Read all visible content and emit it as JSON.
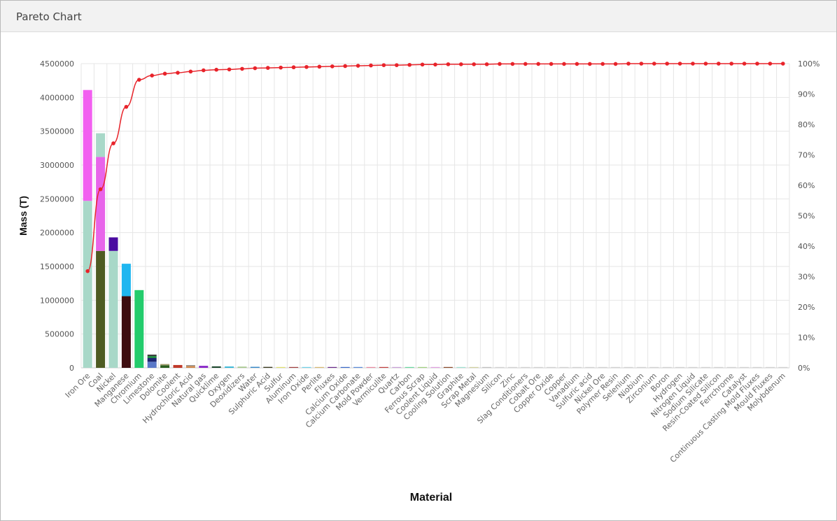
{
  "panel": {
    "title": "Pareto Chart"
  },
  "chart_data": {
    "type": "bar",
    "stacked": true,
    "title": "",
    "xlabel": "Material",
    "ylabel": "Mass (T)",
    "ylim": [
      0,
      4500000
    ],
    "y_ticks": [
      0,
      500000,
      1000000,
      1500000,
      2000000,
      2500000,
      3000000,
      3500000,
      4000000,
      4500000
    ],
    "y2lim": [
      0,
      100
    ],
    "y2_ticks": [
      "0%",
      "10%",
      "20%",
      "30%",
      "40%",
      "50%",
      "60%",
      "70%",
      "80%",
      "90%",
      "100%"
    ],
    "grid": true,
    "legend": "none",
    "categories": [
      "Iron Ore",
      "Coal",
      "Nickel",
      "Manganese",
      "Chromium",
      "Limestone",
      "Dolomite",
      "Coolent",
      "Hydrochloric Acid",
      "Natural gas",
      "Quicklime",
      "Oxygen",
      "Deoxidizers",
      "Water",
      "Sulphuric Acid",
      "Sulfur",
      "Aluminum",
      "Iron Oxide",
      "Perlite",
      "Fluxes",
      "Calcium Oxide",
      "Calcium Carbonate",
      "Mold Powder",
      "Vermiculite",
      "Quartz",
      "Carbon",
      "Ferrous Scrap",
      "Coolent Liquid",
      "Cooling Solution",
      "Graphite",
      "Scrap Metal",
      "Magnesium",
      "Silicon",
      "Zinc",
      "Slag Conditioners",
      "Cobalt Ore",
      "Copper Oxide",
      "Copper",
      "Vanadium",
      "Sulfuric acid",
      "Nickel Ore",
      "Polymer Resin",
      "Selenium",
      "Niobium",
      "Zirconium",
      "Boron",
      "Hydrogen",
      "Nitrogen Liquid",
      "Sodium Silicate",
      "Resin-Coated Silicon",
      "Ferrchrome",
      "Catalyst",
      "Continuous Casting Mold Fluxes",
      "Mould Fluxes",
      "Molybdenum"
    ],
    "bars": [
      [
        {
          "v": 2470000,
          "c": "#a8d8c8"
        },
        {
          "v": 1640000,
          "c": "#f25ff0"
        }
      ],
      [
        {
          "v": 1730000,
          "c": "#4e5b22"
        },
        {
          "v": 1390000,
          "c": "#e865ea"
        },
        {
          "v": 350000,
          "c": "#a8d8c8"
        }
      ],
      [
        {
          "v": 1730000,
          "c": "#a8d8c8"
        },
        {
          "v": 200000,
          "c": "#4a0aa0"
        }
      ],
      [
        {
          "v": 1060000,
          "c": "#3d0d10"
        },
        {
          "v": 480000,
          "c": "#1fb6f0"
        }
      ],
      [
        {
          "v": 1150000,
          "c": "#23cc6c"
        }
      ],
      [
        {
          "v": 90000,
          "c": "#5a78c8"
        },
        {
          "v": 55000,
          "c": "#1c2470"
        },
        {
          "v": 30000,
          "c": "#1e8a40"
        },
        {
          "v": 20000,
          "c": "#333333"
        }
      ],
      [
        {
          "v": 38000,
          "c": "#2a5e20"
        },
        {
          "v": 18000,
          "c": "#9e9a6a"
        }
      ],
      [
        {
          "v": 42000,
          "c": "#c03a2a"
        }
      ],
      [
        {
          "v": 28000,
          "c": "#d08a50"
        },
        {
          "v": 12000,
          "c": "#8a8a8a"
        }
      ],
      [
        {
          "v": 30000,
          "c": "#8a2ac8"
        }
      ],
      [
        {
          "v": 22000,
          "c": "#1f4a30"
        }
      ],
      [
        {
          "v": 20000,
          "c": "#3ab8d8"
        }
      ],
      [
        {
          "v": 18000,
          "c": "#a8c890"
        }
      ],
      [
        {
          "v": 15000,
          "c": "#3a8ac8"
        }
      ],
      [
        {
          "v": 14000,
          "c": "#3a3a20"
        }
      ],
      [
        {
          "v": 10000,
          "c": "#e0e070"
        }
      ],
      [
        {
          "v": 10000,
          "c": "#a04040"
        }
      ],
      [
        {
          "v": 10000,
          "c": "#70d0e8"
        }
      ],
      [
        {
          "v": 9000,
          "c": "#d8b870"
        }
      ],
      [
        {
          "v": 9000,
          "c": "#6a2a8a"
        }
      ],
      [
        {
          "v": 8000,
          "c": "#3a6ac8"
        }
      ],
      [
        {
          "v": 8000,
          "c": "#5a8ad8"
        }
      ],
      [
        {
          "v": 7000,
          "c": "#e88aa0"
        }
      ],
      [
        {
          "v": 7000,
          "c": "#c04040"
        }
      ],
      [
        {
          "v": 7000,
          "c": "#c8a0d8"
        }
      ],
      [
        {
          "v": 6000,
          "c": "#6ad8a0"
        }
      ],
      [
        {
          "v": 6000,
          "c": "#a0d080"
        }
      ],
      [
        {
          "v": 6000,
          "c": "#e0a0e0"
        }
      ],
      [
        {
          "v": 6000,
          "c": "#8a4a2a"
        }
      ],
      [
        {
          "v": 4000,
          "c": "#a0e0d0"
        }
      ],
      [
        {
          "v": 3000,
          "c": "#d0d0a0"
        }
      ],
      [
        {
          "v": 2000,
          "c": "#c0c0c0"
        }
      ],
      [
        {
          "v": 2000,
          "c": "#d0d0d0"
        }
      ],
      [
        {
          "v": 1000,
          "c": "#d0d0d0"
        }
      ],
      [
        {
          "v": 1000,
          "c": "#d0d0d0"
        }
      ],
      [
        {
          "v": 1000,
          "c": "#d0d0d0"
        }
      ],
      [
        {
          "v": 1000,
          "c": "#d0d0d0"
        }
      ],
      [
        {
          "v": 1000,
          "c": "#d0d0d0"
        }
      ],
      [
        {
          "v": 1000,
          "c": "#d0d0d0"
        }
      ],
      [
        {
          "v": 1000,
          "c": "#d0d0d0"
        }
      ],
      [
        {
          "v": 1000,
          "c": "#d0d0d0"
        }
      ],
      [
        {
          "v": 1000,
          "c": "#d0d0d0"
        }
      ],
      [
        {
          "v": 500,
          "c": "#d0d0d0"
        }
      ],
      [
        {
          "v": 500,
          "c": "#d0d0d0"
        }
      ],
      [
        {
          "v": 500,
          "c": "#d0d0d0"
        }
      ],
      [
        {
          "v": 500,
          "c": "#d0d0d0"
        }
      ],
      [
        {
          "v": 500,
          "c": "#d0d0d0"
        }
      ],
      [
        {
          "v": 500,
          "c": "#d0d0d0"
        }
      ],
      [
        {
          "v": 500,
          "c": "#d0d0d0"
        }
      ],
      [
        {
          "v": 500,
          "c": "#d0d0d0"
        }
      ],
      [
        {
          "v": 500,
          "c": "#d0d0d0"
        }
      ],
      [
        {
          "v": 500,
          "c": "#d0d0d0"
        }
      ],
      [
        {
          "v": 500,
          "c": "#d0d0d0"
        }
      ],
      [
        {
          "v": 500,
          "c": "#d0d0d0"
        }
      ],
      [
        {
          "v": 500,
          "c": "#d0d0d0"
        }
      ]
    ],
    "cumulative_percent": [
      31.8,
      58.7,
      73.8,
      85.8,
      94.7,
      96.1,
      96.7,
      97.0,
      97.4,
      97.8,
      98.0,
      98.1,
      98.3,
      98.5,
      98.6,
      98.7,
      98.8,
      98.9,
      99.0,
      99.1,
      99.2,
      99.3,
      99.4,
      99.5,
      99.5,
      99.6,
      99.7,
      99.7,
      99.8,
      99.8,
      99.8,
      99.8,
      99.9,
      99.9,
      99.9,
      99.9,
      99.9,
      99.9,
      99.9,
      99.9,
      99.9,
      99.9,
      100,
      100,
      100,
      100,
      100,
      100,
      100,
      100,
      100,
      100,
      100,
      100,
      100
    ],
    "line_color": "#e8232a",
    "grid_color": "#e6e6e6"
  }
}
